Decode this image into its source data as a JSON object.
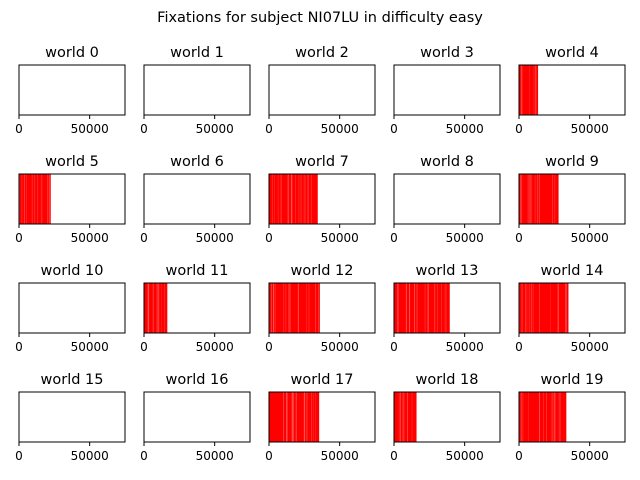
{
  "title": "Fixations for subject NI07LU in difficulty easy",
  "chart_data": [
    {
      "type": "event_raster",
      "title": "world 0",
      "xlim": [
        0,
        75000
      ],
      "x_ticks": [
        0,
        50000
      ],
      "x_tick_labels": [
        "0",
        "50000"
      ],
      "color": "#ff0000",
      "fixation_span": null
    },
    {
      "type": "event_raster",
      "title": "world 1",
      "xlim": [
        0,
        75000
      ],
      "x_ticks": [
        0,
        50000
      ],
      "x_tick_labels": [
        "0",
        "50000"
      ],
      "color": "#ff0000",
      "fixation_span": null
    },
    {
      "type": "event_raster",
      "title": "world 2",
      "xlim": [
        0,
        75000
      ],
      "x_ticks": [
        0,
        50000
      ],
      "x_tick_labels": [
        "0",
        "50000"
      ],
      "color": "#ff0000",
      "fixation_span": null
    },
    {
      "type": "event_raster",
      "title": "world 3",
      "xlim": [
        0,
        75000
      ],
      "x_ticks": [
        0,
        50000
      ],
      "x_tick_labels": [
        "0",
        "50000"
      ],
      "color": "#ff0000",
      "fixation_span": null
    },
    {
      "type": "event_raster",
      "title": "world 4",
      "xlim": [
        0,
        75000
      ],
      "x_ticks": [
        0,
        50000
      ],
      "x_tick_labels": [
        "0",
        "50000"
      ],
      "color": "#ff0000",
      "fixation_span": [
        0,
        13500
      ]
    },
    {
      "type": "event_raster",
      "title": "world 5",
      "xlim": [
        0,
        75000
      ],
      "x_ticks": [
        0,
        50000
      ],
      "x_tick_labels": [
        "0",
        "50000"
      ],
      "color": "#ff0000",
      "fixation_span": [
        0,
        22500
      ]
    },
    {
      "type": "event_raster",
      "title": "world 6",
      "xlim": [
        0,
        75000
      ],
      "x_ticks": [
        0,
        50000
      ],
      "x_tick_labels": [
        "0",
        "50000"
      ],
      "color": "#ff0000",
      "fixation_span": null
    },
    {
      "type": "event_raster",
      "title": "world 7",
      "xlim": [
        0,
        75000
      ],
      "x_ticks": [
        0,
        50000
      ],
      "x_tick_labels": [
        "0",
        "50000"
      ],
      "color": "#ff0000",
      "fixation_span": [
        0,
        34500
      ]
    },
    {
      "type": "event_raster",
      "title": "world 8",
      "xlim": [
        0,
        75000
      ],
      "x_ticks": [
        0,
        50000
      ],
      "x_tick_labels": [
        "0",
        "50000"
      ],
      "color": "#ff0000",
      "fixation_span": null
    },
    {
      "type": "event_raster",
      "title": "world 9",
      "xlim": [
        0,
        75000
      ],
      "x_ticks": [
        0,
        50000
      ],
      "x_tick_labels": [
        "0",
        "50000"
      ],
      "color": "#ff0000",
      "fixation_span": [
        0,
        28000
      ]
    },
    {
      "type": "event_raster",
      "title": "world 10",
      "xlim": [
        0,
        75000
      ],
      "x_ticks": [
        0,
        50000
      ],
      "x_tick_labels": [
        "0",
        "50000"
      ],
      "color": "#ff0000",
      "fixation_span": null
    },
    {
      "type": "event_raster",
      "title": "world 11",
      "xlim": [
        0,
        75000
      ],
      "x_ticks": [
        0,
        50000
      ],
      "x_tick_labels": [
        "0",
        "50000"
      ],
      "color": "#ff0000",
      "fixation_span": [
        0,
        16500
      ]
    },
    {
      "type": "event_raster",
      "title": "world 12",
      "xlim": [
        0,
        75000
      ],
      "x_ticks": [
        0,
        50000
      ],
      "x_tick_labels": [
        "0",
        "50000"
      ],
      "color": "#ff0000",
      "fixation_span": [
        0,
        36000
      ]
    },
    {
      "type": "event_raster",
      "title": "world 13",
      "xlim": [
        0,
        75000
      ],
      "x_ticks": [
        0,
        50000
      ],
      "x_tick_labels": [
        "0",
        "50000"
      ],
      "color": "#ff0000",
      "fixation_span": [
        0,
        39500
      ]
    },
    {
      "type": "event_raster",
      "title": "world 14",
      "xlim": [
        0,
        75000
      ],
      "x_ticks": [
        0,
        50000
      ],
      "x_tick_labels": [
        "0",
        "50000"
      ],
      "color": "#ff0000",
      "fixation_span": [
        0,
        35000
      ]
    },
    {
      "type": "event_raster",
      "title": "world 15",
      "xlim": [
        0,
        75000
      ],
      "x_ticks": [
        0,
        50000
      ],
      "x_tick_labels": [
        "0",
        "50000"
      ],
      "color": "#ff0000",
      "fixation_span": null
    },
    {
      "type": "event_raster",
      "title": "world 16",
      "xlim": [
        0,
        75000
      ],
      "x_ticks": [
        0,
        50000
      ],
      "x_tick_labels": [
        "0",
        "50000"
      ],
      "color": "#ff0000",
      "fixation_span": null
    },
    {
      "type": "event_raster",
      "title": "world 17",
      "xlim": [
        0,
        75000
      ],
      "x_ticks": [
        0,
        50000
      ],
      "x_tick_labels": [
        "0",
        "50000"
      ],
      "color": "#ff0000",
      "fixation_span": [
        0,
        35500
      ]
    },
    {
      "type": "event_raster",
      "title": "world 18",
      "xlim": [
        0,
        75000
      ],
      "x_ticks": [
        0,
        50000
      ],
      "x_tick_labels": [
        "0",
        "50000"
      ],
      "color": "#ff0000",
      "fixation_span": [
        0,
        16000
      ]
    },
    {
      "type": "event_raster",
      "title": "world 19",
      "xlim": [
        0,
        75000
      ],
      "x_ticks": [
        0,
        50000
      ],
      "x_tick_labels": [
        "0",
        "50000"
      ],
      "color": "#ff0000",
      "fixation_span": [
        0,
        33500
      ]
    }
  ]
}
